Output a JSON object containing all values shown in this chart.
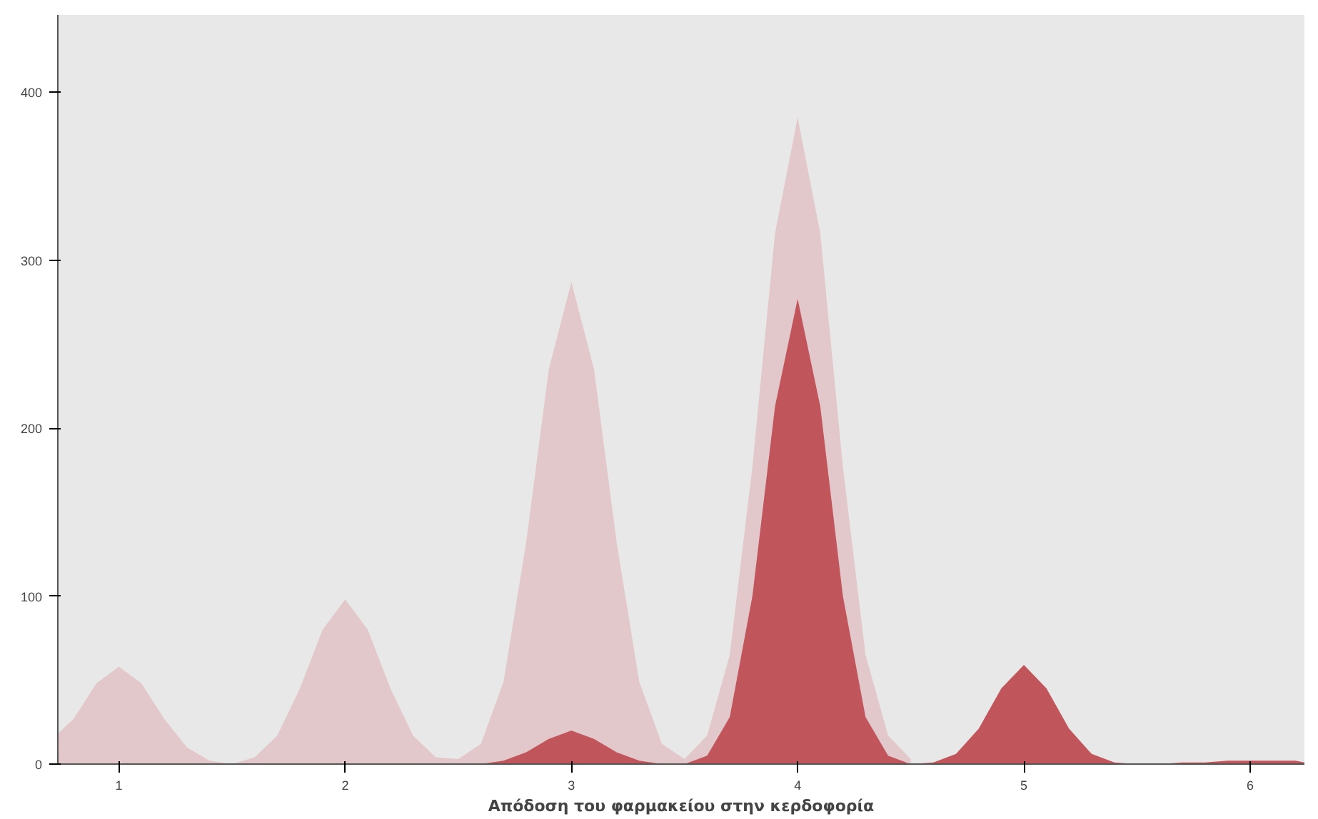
{
  "chart_data": {
    "type": "area",
    "xlabel": "Απόδοση του φαρμακείου στην κερδοφορία",
    "xlim": [
      0.73,
      6.24
    ],
    "ylim": [
      0,
      446
    ],
    "xticks": [
      1,
      2,
      3,
      4,
      5,
      6
    ],
    "yticks": [
      0,
      100,
      200,
      300,
      400
    ],
    "series": [
      {
        "color": "#e3c8cb",
        "x": [
          0.73,
          0.8,
          0.9,
          1.0,
          1.1,
          1.2,
          1.3,
          1.4,
          1.5,
          1.6,
          1.7,
          1.8,
          1.9,
          2.0,
          2.1,
          2.2,
          2.3,
          2.4,
          2.5,
          2.6,
          2.7,
          2.8,
          2.9,
          3.0,
          3.1,
          3.2,
          3.3,
          3.4,
          3.5,
          3.6,
          3.7,
          3.8,
          3.9,
          4.0,
          4.1,
          4.2,
          4.3,
          4.4,
          4.5
        ],
        "values": [
          18,
          27,
          48,
          58,
          48,
          27,
          10,
          2,
          0,
          4,
          17,
          45,
          80,
          98,
          80,
          45,
          17,
          4,
          3,
          12,
          49,
          132,
          235,
          287,
          235,
          132,
          49,
          12,
          3,
          17,
          65,
          177,
          316,
          385,
          316,
          177,
          65,
          17,
          3
        ]
      },
      {
        "color": "#c0565c",
        "x": [
          2.5,
          2.6,
          2.7,
          2.8,
          2.9,
          3.0,
          3.1,
          3.2,
          3.3,
          3.4,
          3.5,
          3.6,
          3.7,
          3.8,
          3.9,
          4.0,
          4.1,
          4.2,
          4.3,
          4.4,
          4.5,
          4.6,
          4.7,
          4.8,
          4.9,
          5.0,
          5.1,
          5.2,
          5.3,
          5.4,
          5.5,
          5.6,
          5.7,
          5.8,
          5.9,
          6.0,
          6.1,
          6.2,
          6.24
        ],
        "values": [
          0,
          0,
          2,
          7,
          15,
          20,
          15,
          7,
          2,
          0,
          0,
          5,
          28,
          100,
          213,
          277,
          213,
          100,
          28,
          5,
          0,
          1,
          6,
          21,
          45,
          59,
          45,
          21,
          6,
          1,
          0,
          0,
          1,
          1,
          2,
          2,
          2,
          2,
          1
        ]
      }
    ]
  }
}
